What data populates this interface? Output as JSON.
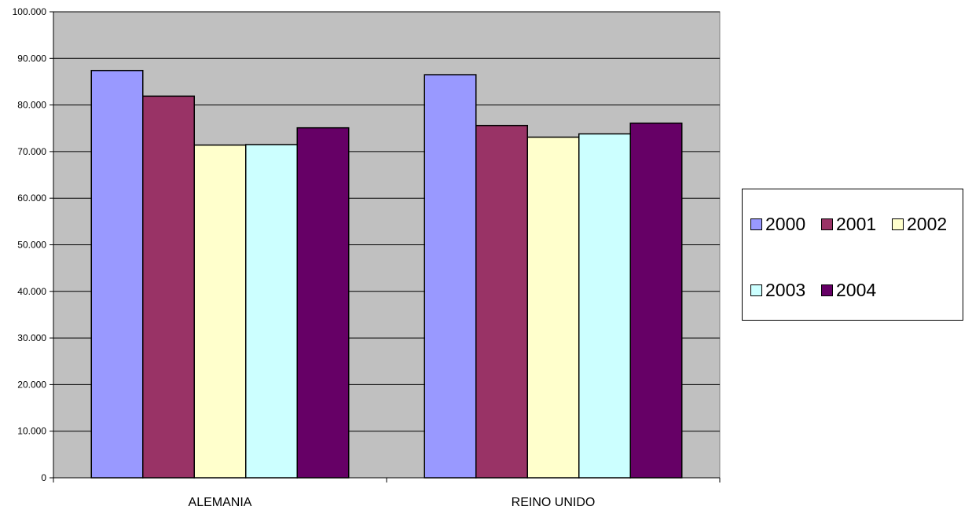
{
  "chart_data": {
    "type": "bar",
    "title": "",
    "xlabel": "",
    "ylabel": "",
    "categories": [
      "ALEMANIA",
      "REINO UNIDO"
    ],
    "series": [
      {
        "name": "2000",
        "values": [
          87400,
          86500
        ],
        "color": "#9999ff"
      },
      {
        "name": "2001",
        "values": [
          81900,
          75600
        ],
        "color": "#993366"
      },
      {
        "name": "2002",
        "values": [
          71400,
          73100
        ],
        "color": "#ffffcc"
      },
      {
        "name": "2003",
        "values": [
          71500,
          73800
        ],
        "color": "#ccffff"
      },
      {
        "name": "2004",
        "values": [
          75100,
          76100
        ],
        "color": "#660066"
      }
    ],
    "ylim": [
      0,
      100000
    ],
    "yticks": [
      {
        "value": 0,
        "label": "0"
      },
      {
        "value": 10000,
        "label": "10.000"
      },
      {
        "value": 20000,
        "label": "20.000"
      },
      {
        "value": 30000,
        "label": "30.000"
      },
      {
        "value": 40000,
        "label": "40.000"
      },
      {
        "value": 50000,
        "label": "50.000"
      },
      {
        "value": 60000,
        "label": "60.000"
      },
      {
        "value": 70000,
        "label": "70.000"
      },
      {
        "value": 80000,
        "label": "80.000"
      },
      {
        "value": 90000,
        "label": "90.000"
      },
      {
        "value": 100000,
        "label": "100.000"
      }
    ],
    "grid": true,
    "legend_position": "right",
    "plot_background": "#c0c0c0"
  }
}
